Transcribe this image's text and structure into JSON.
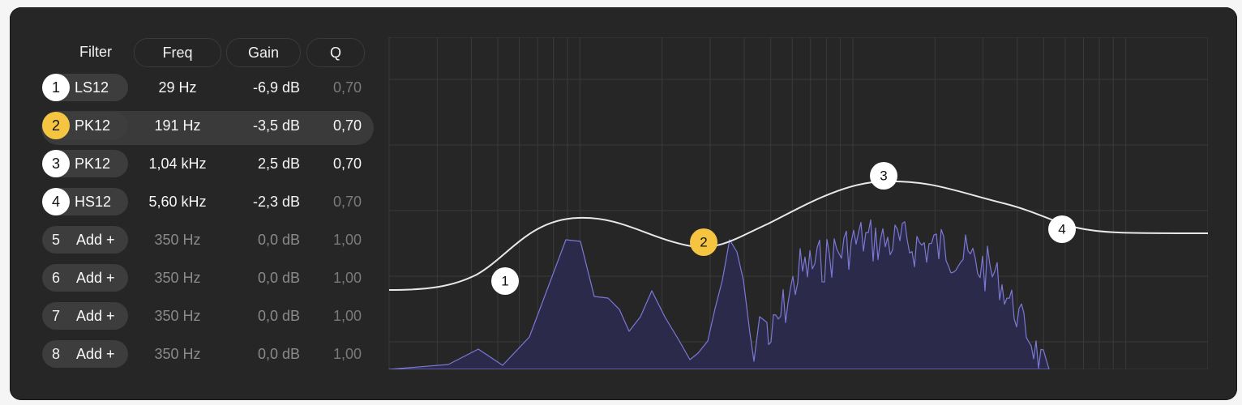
{
  "headers": {
    "filter": "Filter",
    "freq": "Freq",
    "gain": "Gain",
    "q": "Q"
  },
  "bands": [
    {
      "num": "1",
      "type": "LS12",
      "freq": "29 Hz",
      "gain": "-6,9 dB",
      "q": "0,70",
      "enabled": true,
      "selected": false
    },
    {
      "num": "2",
      "type": "PK12",
      "freq": "191 Hz",
      "gain": "-3,5 dB",
      "q": "0,70",
      "enabled": true,
      "selected": true
    },
    {
      "num": "3",
      "type": "PK12",
      "freq": "1,04 kHz",
      "gain": "2,5 dB",
      "q": "0,70",
      "enabled": true,
      "selected": false
    },
    {
      "num": "4",
      "type": "HS12",
      "freq": "5,60 kHz",
      "gain": "-2,3 dB",
      "q": "0,70",
      "enabled": true,
      "selected": false
    },
    {
      "num": "5",
      "type": "Add +",
      "freq": "350 Hz",
      "gain": "0,0 dB",
      "q": "1,00",
      "enabled": false,
      "selected": false
    },
    {
      "num": "6",
      "type": "Add +",
      "freq": "350 Hz",
      "gain": "0,0 dB",
      "q": "1,00",
      "enabled": false,
      "selected": false
    },
    {
      "num": "7",
      "type": "Add +",
      "freq": "350 Hz",
      "gain": "0,0 dB",
      "q": "1,00",
      "enabled": false,
      "selected": false
    },
    {
      "num": "8",
      "type": "Add +",
      "freq": "350 Hz",
      "gain": "0,0 dB",
      "q": "1,00",
      "enabled": false,
      "selected": false
    }
  ],
  "graph": {
    "nodes": [
      {
        "label": "1",
        "active": false
      },
      {
        "label": "2",
        "active": true
      },
      {
        "label": "3",
        "active": false
      },
      {
        "label": "4",
        "active": false
      }
    ],
    "colors": {
      "background": "#262626",
      "grid": "#3a3a3a",
      "curve": "#e8e8e8",
      "spectrum_line": "#7b78d6",
      "spectrum_fill": "#2b2a4a",
      "node": "#ffffff",
      "node_active": "#f5c542"
    }
  }
}
